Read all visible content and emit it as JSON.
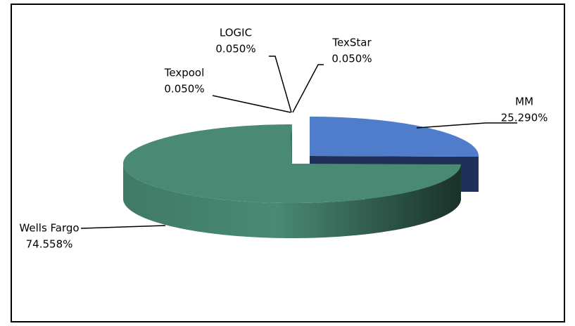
{
  "chart_data": {
    "type": "pie3d",
    "categories": [
      "MM",
      "Wells Fargo",
      "Texpool",
      "LOGIC",
      "TexStar"
    ],
    "values": [
      25.29,
      74.558,
      0.05,
      0.05,
      0.05
    ],
    "value_labels": [
      "25.290%",
      "74.558%",
      "0.050%",
      "0.050%",
      "0.050%"
    ],
    "colors": [
      "#4f7dcc",
      "#4a8a75",
      "#4a8a75",
      "#4a8a75",
      "#4a8a75"
    ],
    "side_colors": [
      "#1f3158",
      "#1f3b31",
      "#1f3b31",
      "#1f3b31",
      "#1f3b31"
    ]
  }
}
